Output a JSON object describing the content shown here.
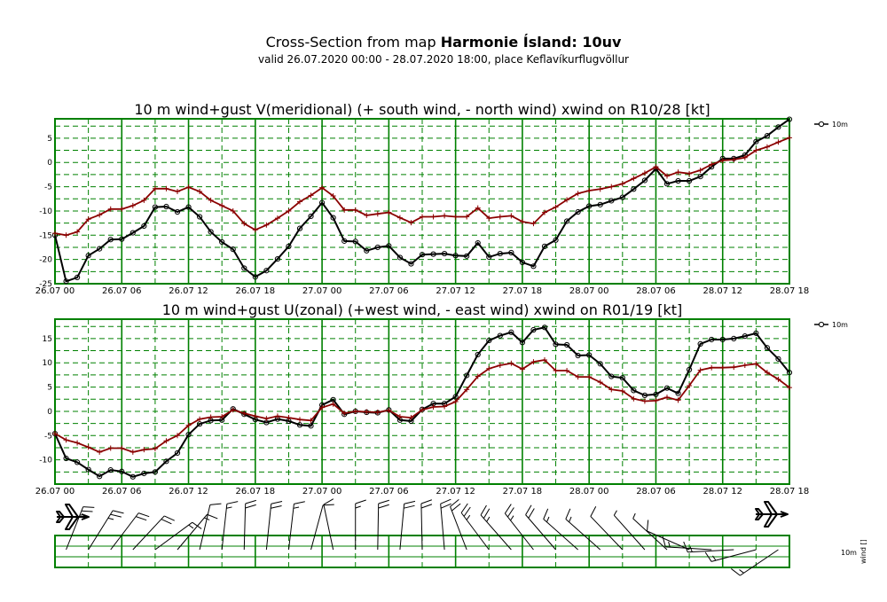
{
  "header": {
    "title_prefix": "Cross-Section from map ",
    "title_bold": "Harmonie Ísland: 10uv",
    "subtitle": "valid 26.07.2020 00:00 - 28.07.2020 18:00, place Keflavíkurflugvöllur"
  },
  "colors": {
    "grid": "#008000",
    "wind": "#000000",
    "gust": "#8b0000"
  },
  "chart_data": [
    {
      "type": "line",
      "title": "10 m wind+gust V(meridional) (+ south wind, - north wind) xwind on R10/28 [kt]",
      "x_tick_labels": [
        "26.07 00",
        "26.07 06",
        "26.07 12",
        "26.07 18",
        "27.07 00",
        "27.07 06",
        "27.07 12",
        "27.07 18",
        "28.07 00",
        "28.07 06",
        "28.07 12",
        "28.07 18"
      ],
      "x_hours_range": [
        0,
        66
      ],
      "ylim": [
        -25,
        9
      ],
      "y_ticks": [
        -25,
        -20,
        -15,
        -10,
        -5,
        0,
        5
      ],
      "legend": "10m",
      "series": [
        {
          "name": "10m",
          "marker": "circle",
          "values": [
            -15,
            -24.5,
            -23.7,
            -19.2,
            -17.8,
            -15.9,
            -15.8,
            -14.5,
            -13.1,
            -9.2,
            -9.1,
            -10.2,
            -9.2,
            -11.2,
            -14.3,
            -16.4,
            -17.9,
            -21.8,
            -23.6,
            -22.3,
            -19.9,
            -17.3,
            -13.6,
            -11.1,
            -8.3,
            -11.4,
            -16.2,
            -16.3,
            -18.2,
            -17.5,
            -17.2,
            -19.6,
            -20.9,
            -19,
            -18.9,
            -18.8,
            -19.2,
            -19.3,
            -16.6,
            -19.5,
            -18.8,
            -18.6,
            -20.6,
            -21.4,
            -17.3,
            -16,
            -12.1,
            -10.2,
            -9,
            -8.7,
            -7.9,
            -7.2,
            -5.5,
            -3.7,
            -1.3,
            -4.4,
            -3.8,
            -3.8,
            -2.9,
            -0.9,
            0.8,
            0.8,
            1.5,
            4.3,
            5.5,
            7.3,
            8.9
          ]
        },
        {
          "name": "gust",
          "marker": "plus",
          "values": [
            -14.6,
            -15,
            -14.3,
            -11.7,
            -10.8,
            -9.6,
            -9.6,
            -8.9,
            -7.8,
            -5.4,
            -5.4,
            -6,
            -5.1,
            -6,
            -7.8,
            -8.9,
            -10,
            -12.6,
            -13.9,
            -12.9,
            -11.5,
            -10,
            -8.1,
            -6.8,
            -5.2,
            -6.9,
            -9.8,
            -9.8,
            -10.9,
            -10.6,
            -10.3,
            -11.4,
            -12.4,
            -11.2,
            -11.2,
            -11,
            -11.2,
            -11.2,
            -9.4,
            -11.5,
            -11.2,
            -11,
            -12.2,
            -12.6,
            -10.3,
            -9.2,
            -7.7,
            -6.4,
            -5.8,
            -5.5,
            -5,
            -4.4,
            -3.3,
            -2.2,
            -0.9,
            -2.8,
            -2,
            -2.3,
            -1.6,
            -0.4,
            0.4,
            0.6,
            1,
            2.5,
            3.2,
            4.2,
            5.1
          ]
        }
      ]
    },
    {
      "type": "line",
      "title": "10 m wind+gust U(zonal) (+west wind, - east wind) xwind on R01/19 [kt]",
      "x_tick_labels": [
        "26.07 00",
        "26.07 06",
        "26.07 12",
        "26.07 18",
        "27.07 00",
        "27.07 06",
        "27.07 12",
        "27.07 18",
        "28.07 00",
        "28.07 06",
        "28.07 12",
        "28.07 18"
      ],
      "x_hours_range": [
        0,
        66
      ],
      "ylim": [
        -15,
        19
      ],
      "y_ticks": [
        -10,
        -5,
        0,
        5,
        10,
        15
      ],
      "legend": "10m",
      "series": [
        {
          "name": "10m",
          "marker": "circle",
          "values": [
            -4.6,
            -9.7,
            -10.5,
            -12,
            -13.4,
            -12.1,
            -12.4,
            -13.5,
            -12.8,
            -12.5,
            -10.3,
            -8.6,
            -4.8,
            -2.6,
            -1.9,
            -1.8,
            0.5,
            -0.6,
            -1.7,
            -2.3,
            -1.6,
            -2,
            -2.8,
            -3,
            1.3,
            2.4,
            -0.6,
            0,
            -0.2,
            -0.3,
            0.3,
            -1.8,
            -2,
            0.4,
            1.6,
            1.6,
            3,
            7.4,
            11.7,
            14.6,
            15.6,
            16.3,
            14.2,
            16.8,
            17.3,
            13.8,
            13.7,
            11.5,
            11.6,
            9.8,
            7.2,
            6.9,
            4.3,
            3.3,
            3.5,
            4.8,
            3.7,
            8.6,
            13.9,
            14.8,
            14.8,
            15,
            15.5,
            16.1,
            13.1,
            10.8,
            8
          ]
        },
        {
          "name": "gust",
          "marker": "plus",
          "values": [
            -4.6,
            -5.9,
            -6.5,
            -7.4,
            -8.4,
            -7.6,
            -7.6,
            -8.4,
            -7.9,
            -7.7,
            -6.1,
            -5,
            -2.9,
            -1.6,
            -1.2,
            -1.1,
            0.3,
            -0.4,
            -1,
            -1.5,
            -1,
            -1.3,
            -1.7,
            -1.9,
            0.8,
            1.5,
            -0.4,
            0,
            -0.1,
            -0.2,
            0.2,
            -1.1,
            -1.3,
            0.3,
            0.9,
            1,
            2,
            4.5,
            7.2,
            8.8,
            9.5,
            9.9,
            8.7,
            10.2,
            10.6,
            8.4,
            8.4,
            7.1,
            7.1,
            6,
            4.5,
            4.2,
            2.6,
            2.1,
            2.2,
            2.9,
            2.3,
            5.3,
            8.5,
            9,
            9,
            9.1,
            9.5,
            9.8,
            8,
            6.6,
            4.9
          ]
        }
      ]
    }
  ],
  "barbs": {
    "legend_level": "10m",
    "legend_var": "wind []"
  }
}
